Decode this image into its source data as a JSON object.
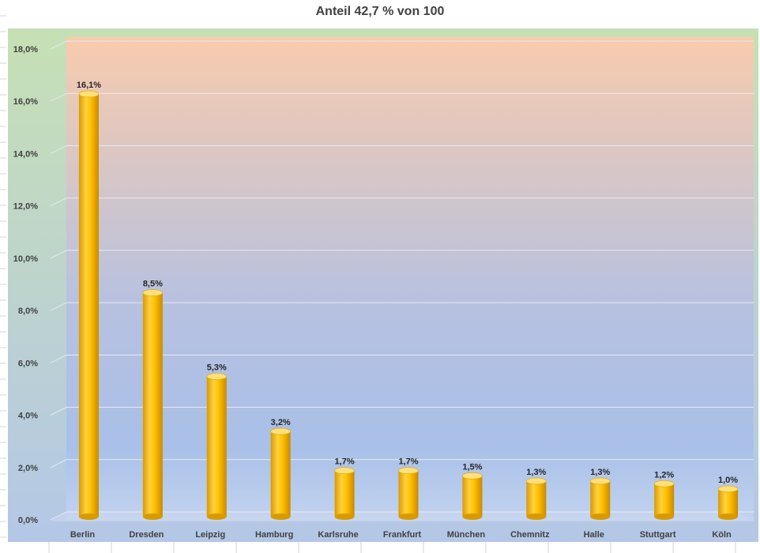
{
  "chart_data": {
    "type": "bar",
    "title": "Anteil 42,7 % von 100",
    "categories": [
      "Berlin",
      "Dresden",
      "Leipzig",
      "Hamburg",
      "Karlsruhe",
      "Frankfurt",
      "München",
      "Chemnitz",
      "Halle",
      "Stuttgart",
      "Köln"
    ],
    "values": [
      16.1,
      8.5,
      5.3,
      3.2,
      1.7,
      1.7,
      1.5,
      1.3,
      1.3,
      1.2,
      1.0
    ],
    "data_labels": [
      "16,1%",
      "8,5%",
      "5,3%",
      "3,2%",
      "1,7%",
      "1,7%",
      "1,5%",
      "1,3%",
      "1,3%",
      "1,2%",
      "1,0%"
    ],
    "yticks": [
      0,
      2,
      4,
      6,
      8,
      10,
      12,
      14,
      16,
      18
    ],
    "ytick_labels": [
      "0,0%",
      "2,0%",
      "4,0%",
      "6,0%",
      "8,0%",
      "10,0%",
      "12,0%",
      "14,0%",
      "16,0%",
      "18,0%"
    ],
    "ylim": [
      0,
      18
    ],
    "grid": true,
    "legend": "none",
    "colors": {
      "bar": "#ffc000",
      "bar_dark": "#d99a00",
      "bar_light": "#ffe07a",
      "chart_bg_top": "#c6e0b4",
      "chart_bg_bottom": "#b4c7e7",
      "plot_bg_top": "#f8cbad",
      "plot_bg_bottom": "#b4c7e7"
    }
  }
}
